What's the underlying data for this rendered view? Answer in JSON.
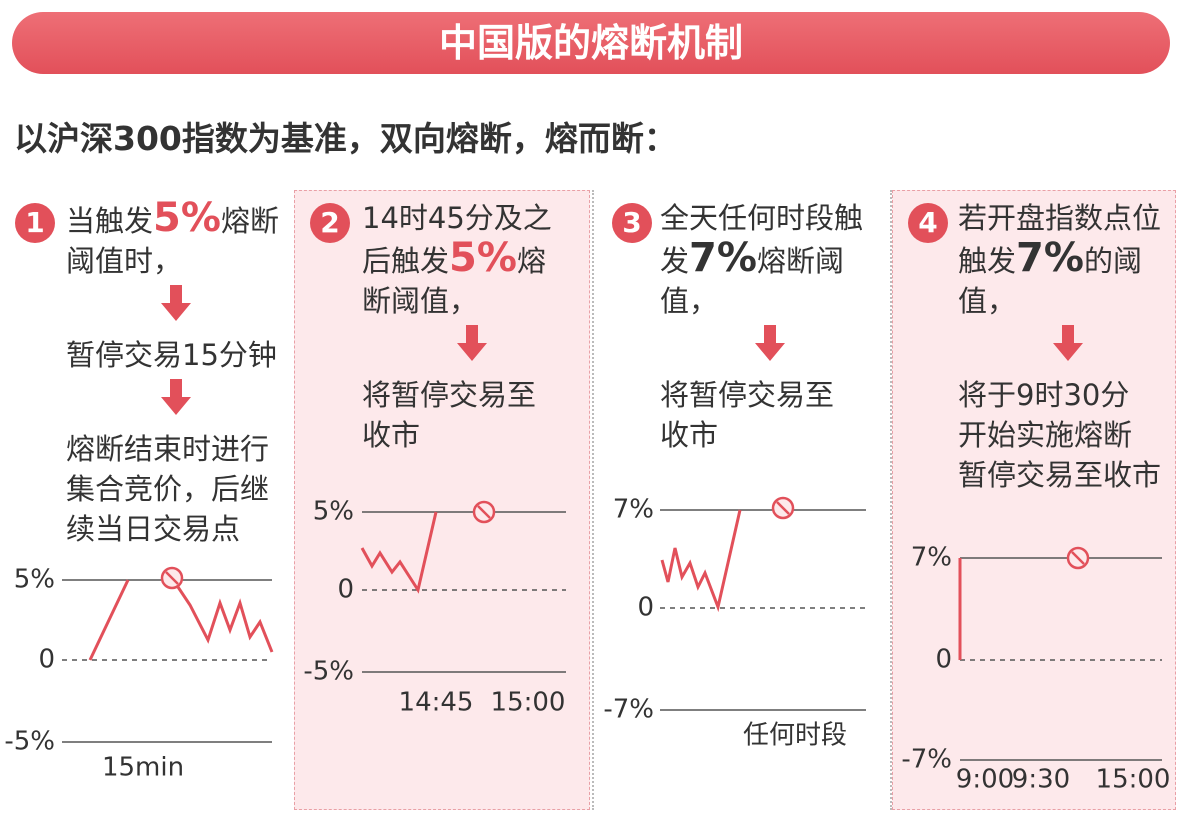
{
  "header": {
    "title": "中国版的熔断机制",
    "subtitle": "以沪深300指数为基准，双向熔断，熔而断："
  },
  "panels": [
    {
      "number": "1",
      "condition": {
        "before": "当触发",
        "threshold": "5%",
        "after": "熔断阈值时，"
      },
      "results": [
        [
          "暂停交易15分钟"
        ],
        [
          "熔断结束时进行",
          "集合竞价，后继",
          "续当日交易点"
        ]
      ],
      "chart": {
        "y_labels": [
          "5%",
          "0",
          "-5%"
        ],
        "x_labels": [
          "15min"
        ]
      }
    },
    {
      "number": "2",
      "condition": {
        "before": "14时45分及之后触发",
        "threshold": "5%",
        "after": "熔断阈值，"
      },
      "results": [
        [
          "将暂停交易至",
          "收市"
        ]
      ],
      "chart": {
        "y_labels": [
          "5%",
          "0",
          "-5%"
        ],
        "x_labels": [
          "14:45",
          "15:00"
        ]
      }
    },
    {
      "number": "3",
      "condition": {
        "before": "全天任何时段触发",
        "threshold": "7%",
        "after": "熔断阈值，"
      },
      "results": [
        [
          "将暂停交易至",
          "收市"
        ]
      ],
      "chart": {
        "y_labels": [
          "7%",
          "0",
          "-7%"
        ],
        "x_labels": [
          "任何时段"
        ]
      }
    },
    {
      "number": "4",
      "condition": {
        "before": "若开盘指数点位触发",
        "threshold": "7%",
        "after": "的阈值，"
      },
      "results": [
        [
          "将于9时30分",
          "开始实施熔断",
          "暂停交易至收市"
        ]
      ],
      "chart": {
        "y_labels": [
          "7%",
          "0",
          "-7%"
        ],
        "x_labels": [
          "9:00",
          "9:30",
          "15:00"
        ]
      }
    }
  ]
}
